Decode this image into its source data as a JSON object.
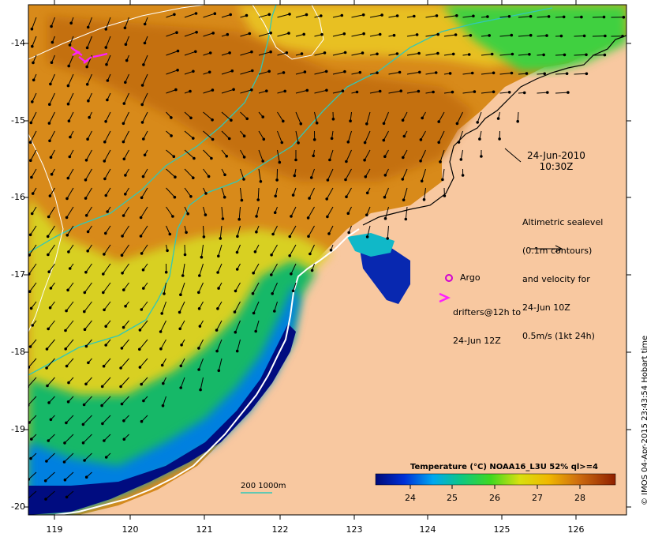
{
  "timestamp": {
    "date": "24-Jun-2010",
    "time": "10:30Z"
  },
  "legend": {
    "altimetry_lines": [
      "Altimetric sealevel",
      "(0.1m contours)",
      "and velocity for",
      "24-Jun 10Z",
      "0.5m/s (1kt 24h)"
    ],
    "argo_label": "Argo",
    "drifters_lines": [
      "drifters@12h to",
      "24-Jun 12Z"
    ],
    "argo_color": "#d000d0",
    "drifter_color": "#ff20ff"
  },
  "colorbar": {
    "title": "Temperature (°C) NOAA16_L3U 52% ql>=4",
    "ticks": [
      "24",
      "25",
      "26",
      "27",
      "28"
    ],
    "range": [
      23.4,
      28.8
    ]
  },
  "axes": {
    "lon_ticks": [
      "119",
      "120",
      "121",
      "122",
      "123",
      "124",
      "125",
      "126"
    ],
    "lat_ticks": [
      "-14",
      "-15",
      "-16",
      "-17",
      "-18",
      "-19",
      "-20"
    ]
  },
  "scale_label": "200  1000m",
  "credit": "© IMOS 04-Apr-2015 23:43:54 Hobart time",
  "colors": {
    "land": "#f8c8a0",
    "ocean_warm": "#c87818",
    "ocean_cool": "#10b070",
    "deep_cold": "#000c80",
    "isobath": "#30c8b8"
  }
}
